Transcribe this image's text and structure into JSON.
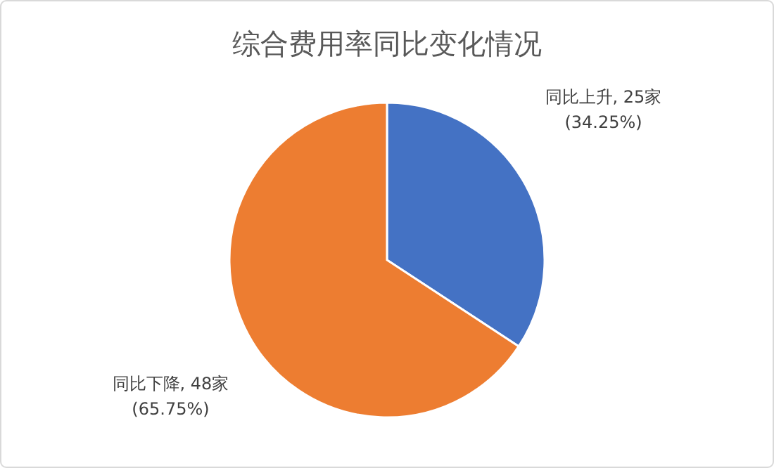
{
  "chart_data": {
    "type": "pie",
    "title": "综合费用率同比变化情况",
    "categories": [
      "同比上升",
      "同比下降"
    ],
    "values": [
      25,
      48
    ],
    "colors": [
      "#4472c4",
      "#ed7d31"
    ],
    "value_labels": [
      "25家\n(34.25%)",
      "48家\n(65.75%)"
    ]
  }
}
